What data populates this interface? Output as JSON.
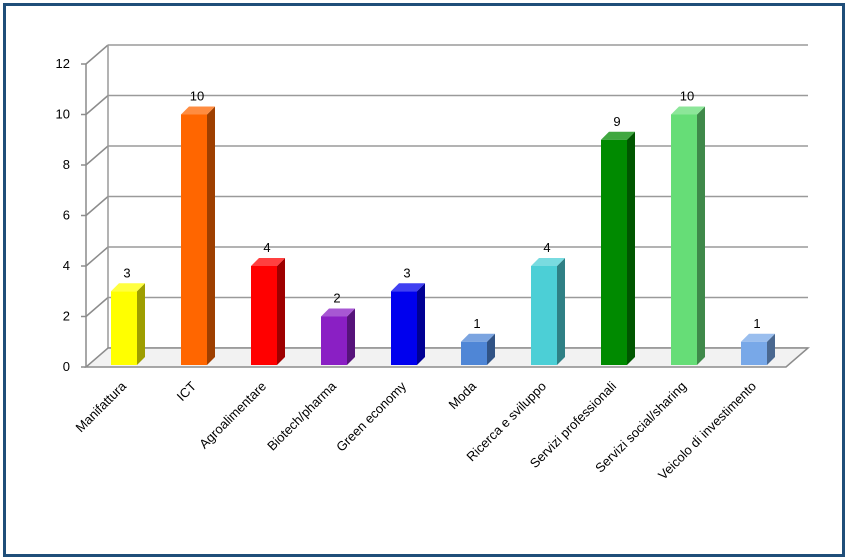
{
  "chart_data": {
    "type": "bar",
    "title": "",
    "xlabel": "",
    "ylabel": "",
    "ylim": [
      0,
      12
    ],
    "yticks": [
      0,
      2,
      4,
      6,
      8,
      10,
      12
    ],
    "grid": true,
    "legend": "none",
    "categories": [
      "Manifattura",
      "ICT",
      "Agroalimentare",
      "Biotech/pharma",
      "Green economy",
      "Moda",
      "Ricerca e sviluppo",
      "Servizi professionali",
      "Servizi social/sharing",
      "Veicolo di investimento"
    ],
    "values": [
      3,
      10,
      4,
      2,
      3,
      1,
      4,
      9,
      10,
      1
    ],
    "data_labels": [
      "3",
      "10",
      "4",
      "2",
      "3",
      "1",
      "4",
      "9",
      "10",
      "1"
    ],
    "colors": [
      "#ffff00",
      "#ff6600",
      "#ff0000",
      "#8a1fc4",
      "#0000ee",
      "#4f86d6",
      "#4ccfd6",
      "#008a00",
      "#66dd77",
      "#78a8e8"
    ]
  }
}
